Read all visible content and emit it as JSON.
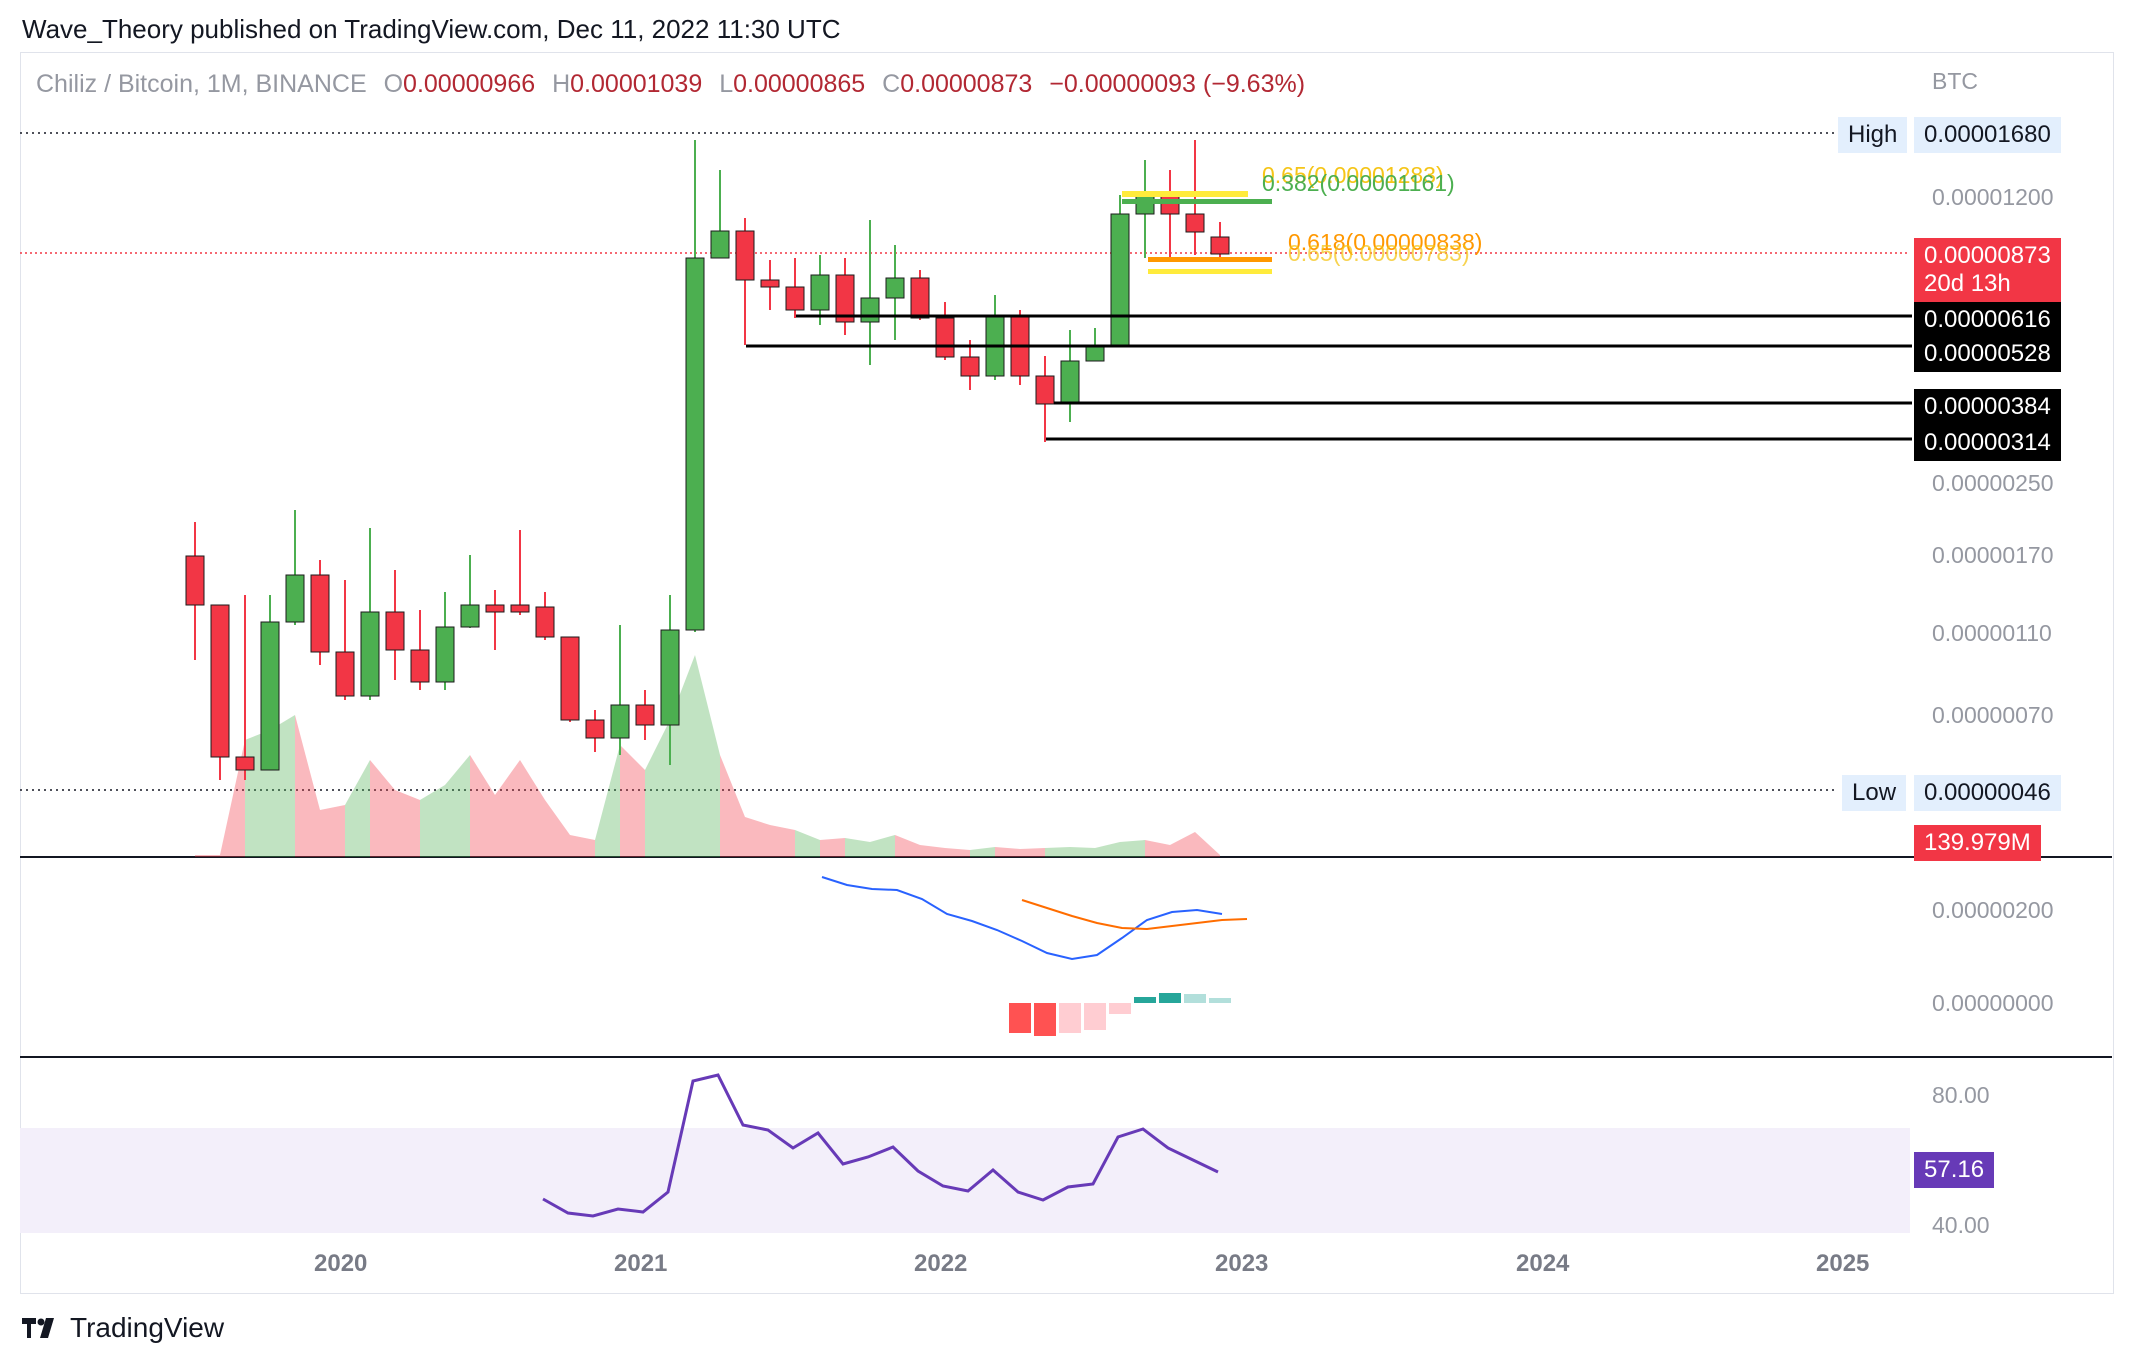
{
  "header": {
    "title": "Wave_Theory published on TradingView.com, Dec 11, 2022 11:30 UTC"
  },
  "legend": {
    "symbol": "Chiliz / Bitcoin, 1M, BINANCE",
    "open_label": "O",
    "open": "0.00000966",
    "high_label": "H",
    "high": "0.00001039",
    "low_label": "L",
    "low": "0.00000865",
    "close_label": "C",
    "close": "0.00000873",
    "change": "−0.00000093 (−9.63%)"
  },
  "price_axis": {
    "currency": "BTC",
    "ticks": [
      "0.00001200",
      "0.00000250",
      "0.00000170",
      "0.00000110",
      "0.00000070"
    ]
  },
  "tags": {
    "high_label": "High",
    "high_value": "0.00001680",
    "low_label": "Low",
    "low_value": "0.00000046",
    "last_price": "0.00000873",
    "countdown": "20d 13h",
    "level_1": "0.00000616",
    "level_2": "0.00000528",
    "level_3": "0.00000384",
    "level_4": "0.00000314",
    "volume": "139.979M",
    "rsi": "57.16"
  },
  "fib_labels": {
    "top_yellow": "0.65(0.00001283)",
    "top_green": "0.382(0.00001161)",
    "bottom_orange": "0.618(0.00000838)",
    "bottom_yellow": "0.65(0.00000783)"
  },
  "macd_axis": {
    "ticks": [
      "0.00000200",
      "0.00000000"
    ]
  },
  "rsi_axis": {
    "ticks": [
      "80.00",
      "40.00"
    ]
  },
  "time_axis": {
    "years": [
      "2020",
      "2021",
      "2022",
      "2023",
      "2024",
      "2025"
    ]
  },
  "footer": {
    "brand": "TradingView"
  },
  "colors": {
    "up": "#4caf50",
    "down": "#f23645",
    "macd": "#2962ff",
    "signal": "#ff6d00",
    "rsi": "#673ab7"
  },
  "chart_data": {
    "type": "candlestick",
    "title": "Chiliz / Bitcoin, 1M, BINANCE",
    "indicators": [
      "Volume",
      "MACD",
      "RSI"
    ],
    "horizontal_levels": [
      6.16e-06,
      5.28e-06,
      3.84e-06,
      3.14e-06
    ],
    "fib_levels": [
      {
        "label": "0.65",
        "value": 1.283e-05
      },
      {
        "label": "0.382",
        "value": 1.161e-05
      },
      {
        "label": "0.618",
        "value": 8.38e-06
      },
      {
        "label": "0.65",
        "value": 7.83e-06
      }
    ],
    "high": 1.68e-05,
    "low": 4.6e-07,
    "last": 8.73e-06,
    "rsi_last": 57.16
  }
}
